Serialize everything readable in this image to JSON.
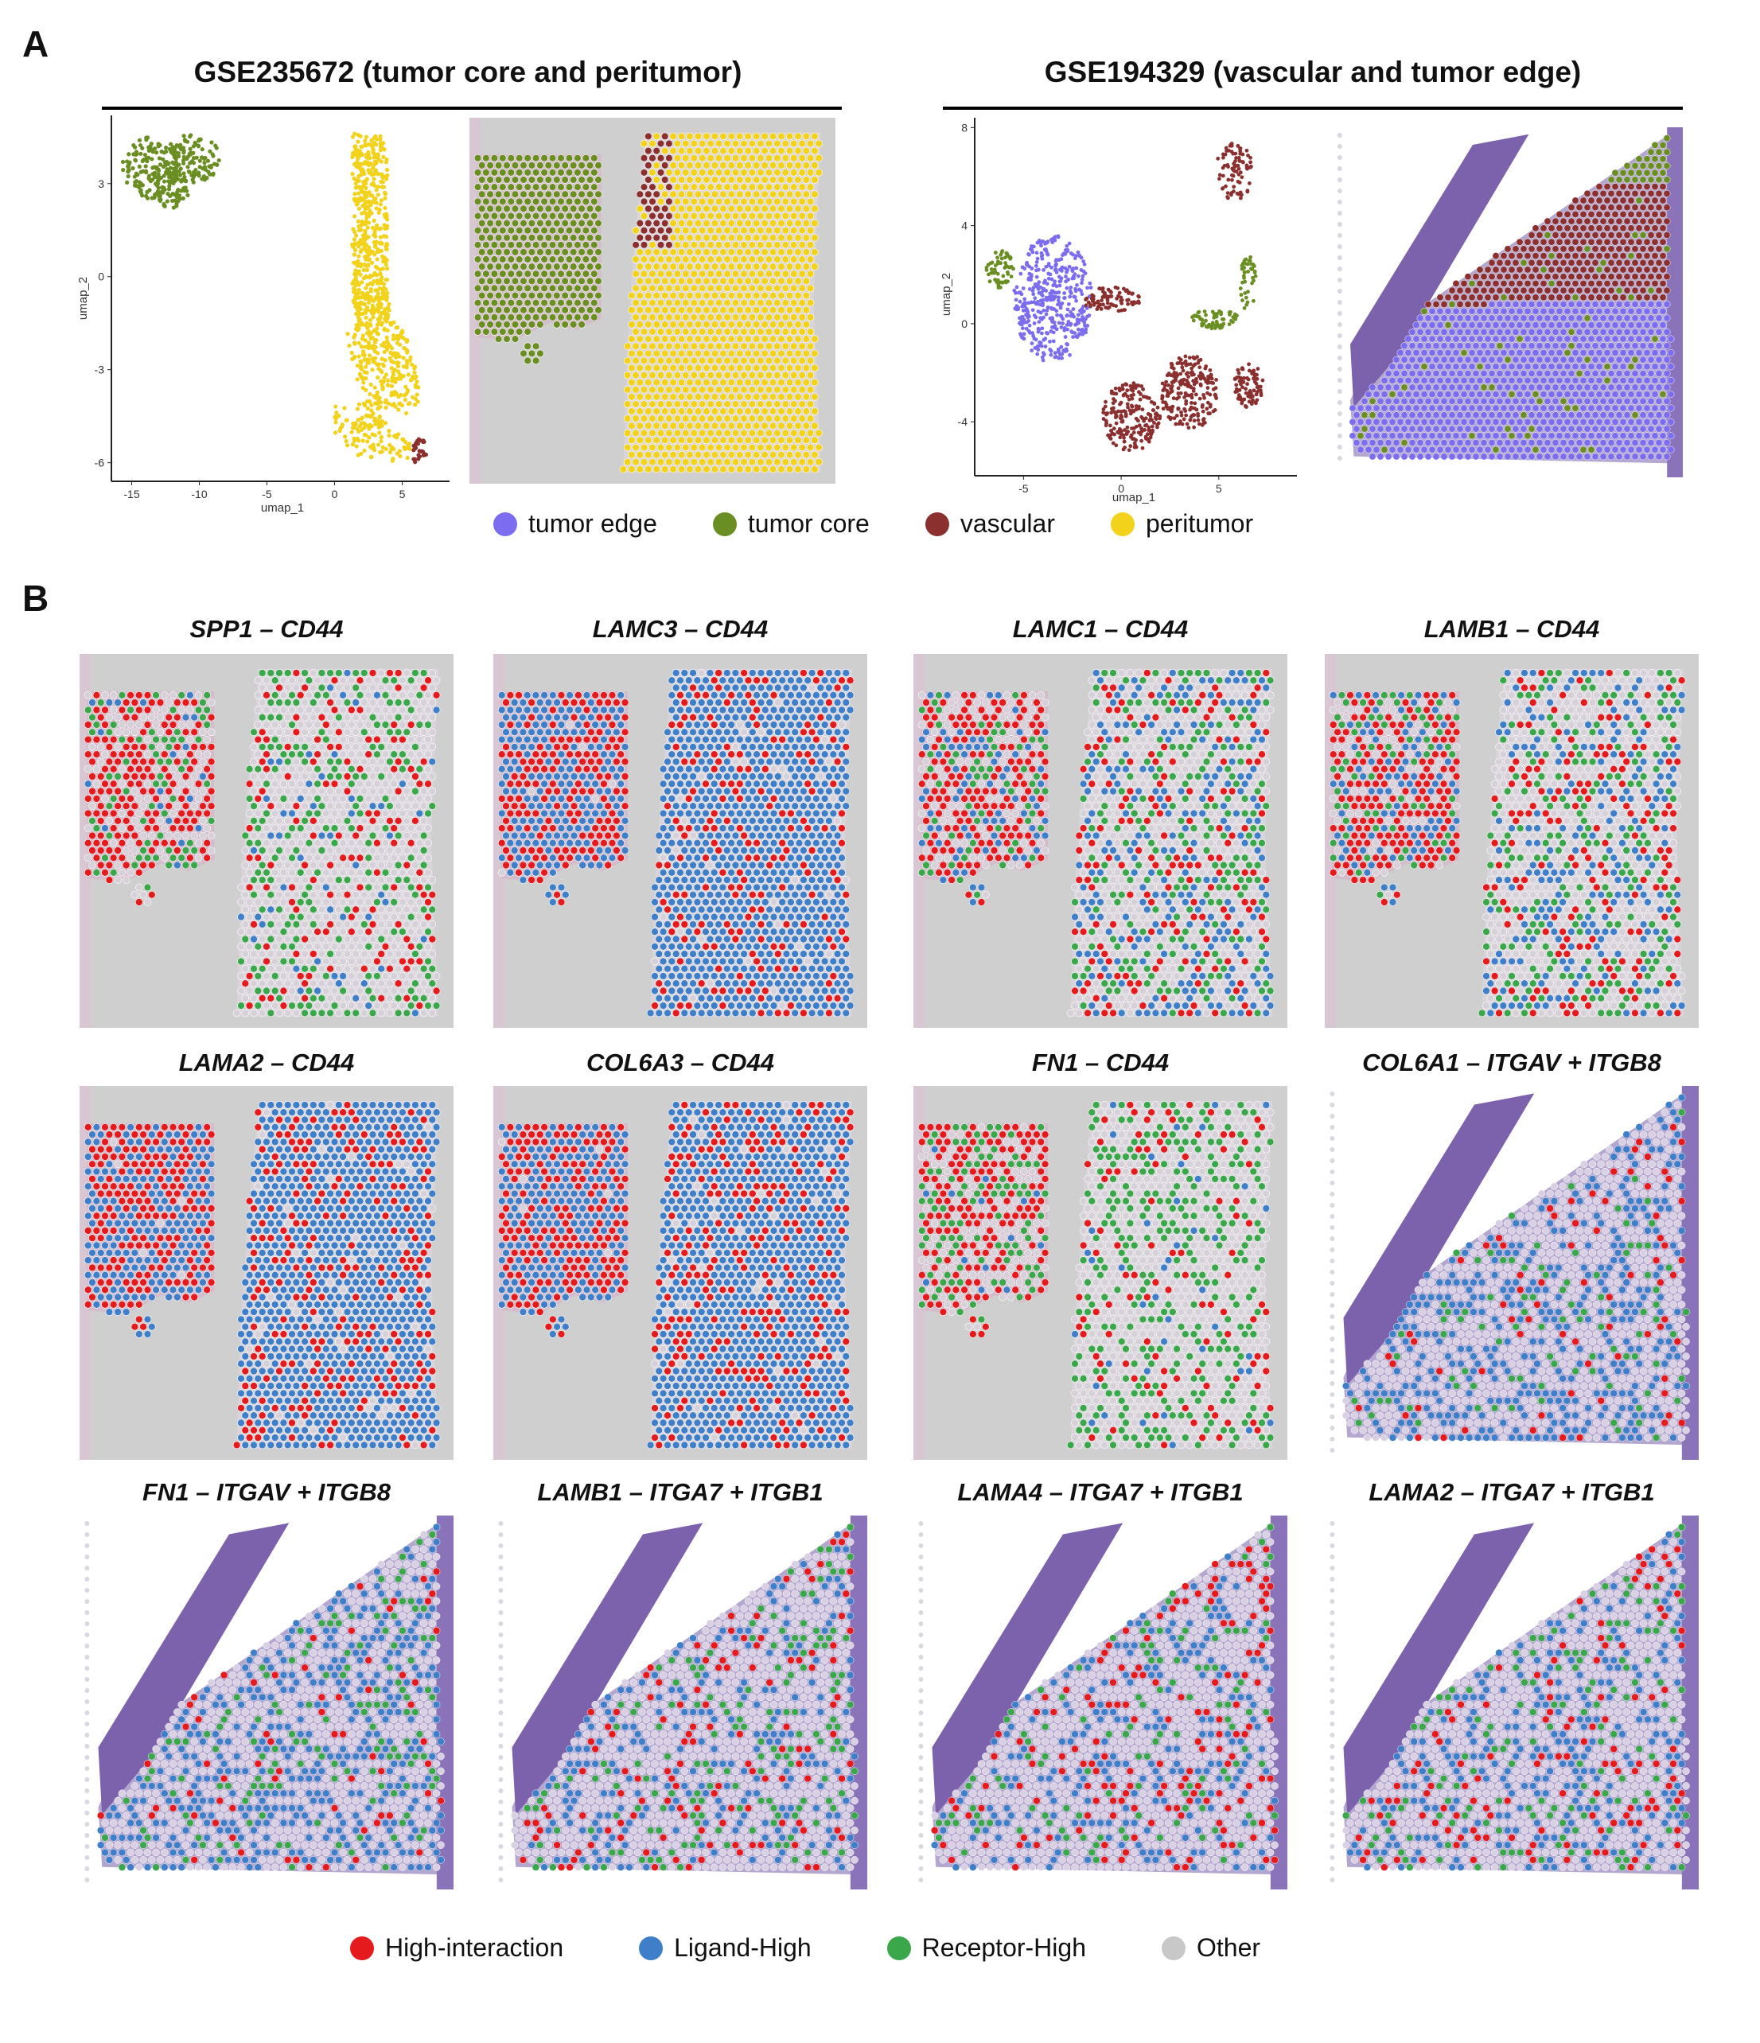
{
  "panel_a": {
    "letter": "A",
    "left_title": "GSE235672 (tumor core and peritumor)",
    "right_title": "GSE194329 (vascular and tumor edge)",
    "umap_left": {
      "xlabel": "umap_1",
      "ylabel": "umap_2",
      "xticks": [
        "-15",
        "-10",
        "-5",
        "0",
        "5"
      ],
      "yticks": [
        "3",
        "0",
        "-3",
        "-6"
      ]
    },
    "umap_right": {
      "xlabel": "umap_1",
      "ylabel": "umap_2",
      "xticks": [
        "-5",
        "0",
        "5"
      ],
      "yticks": [
        "8",
        "4",
        "0",
        "-4"
      ]
    },
    "legend": [
      {
        "label": "tumor edge",
        "color": "#7b6cf0"
      },
      {
        "label": "tumor core",
        "color": "#6b8e23"
      },
      {
        "label": "vascular",
        "color": "#8b2f2f"
      },
      {
        "label": "peritumor",
        "color": "#f2d21b"
      }
    ]
  },
  "panel_b": {
    "letter": "B",
    "tiles": [
      {
        "title": "SPP1 – CD44",
        "tissue": "A",
        "dist": [
          0.14,
          0.06,
          0.22,
          0.58
        ]
      },
      {
        "title": "LAMC3 – CD44",
        "tissue": "A",
        "dist": [
          0.18,
          0.78,
          0.0,
          0.04
        ]
      },
      {
        "title": "LAMC1 – CD44",
        "tissue": "A",
        "dist": [
          0.16,
          0.22,
          0.22,
          0.4
        ]
      },
      {
        "title": "LAMB1 – CD44",
        "tissue": "A",
        "dist": [
          0.14,
          0.22,
          0.2,
          0.44
        ]
      },
      {
        "title": "LAMA2 – CD44",
        "tissue": "A",
        "dist": [
          0.22,
          0.74,
          0.0,
          0.04
        ]
      },
      {
        "title": "COL6A3 – CD44",
        "tissue": "A",
        "dist": [
          0.2,
          0.76,
          0.0,
          0.04
        ]
      },
      {
        "title": "FN1 – CD44",
        "tissue": "A",
        "dist": [
          0.1,
          0.04,
          0.3,
          0.56
        ]
      },
      {
        "title": "COL6A1 – ITGAV + ITGB8",
        "tissue": "B",
        "dist": [
          0.05,
          0.3,
          0.08,
          0.57
        ]
      },
      {
        "title": "FN1 – ITGAV + ITGB8",
        "tissue": "B",
        "dist": [
          0.05,
          0.3,
          0.14,
          0.51
        ]
      },
      {
        "title": "LAMB1 – ITGA7 + ITGB1",
        "tissue": "B",
        "dist": [
          0.1,
          0.2,
          0.14,
          0.56
        ]
      },
      {
        "title": "LAMA4 – ITGA7 + ITGB1",
        "tissue": "B",
        "dist": [
          0.13,
          0.18,
          0.1,
          0.59
        ]
      },
      {
        "title": "LAMA2 – ITGA7 + ITGB1",
        "tissue": "B",
        "dist": [
          0.1,
          0.22,
          0.12,
          0.56
        ]
      }
    ],
    "legend": [
      {
        "label": "High-interaction",
        "color": "#e41a1c"
      },
      {
        "label": "Ligand-High",
        "color": "#3f7fc9"
      },
      {
        "label": "Receptor-High",
        "color": "#3aa84a"
      },
      {
        "label": "Other",
        "color": "#c8c8c8"
      }
    ]
  }
}
